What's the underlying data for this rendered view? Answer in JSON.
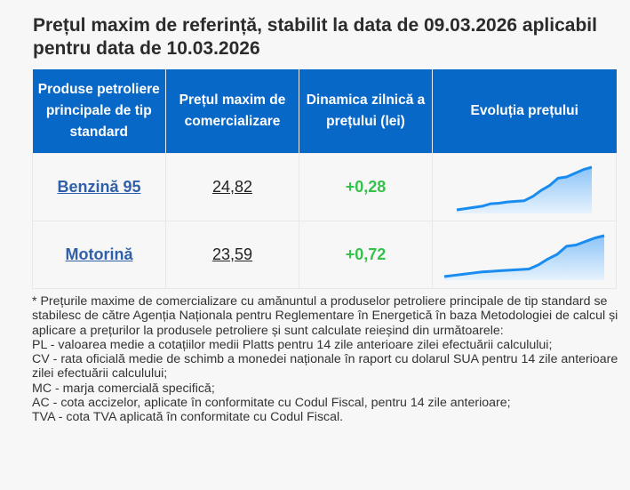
{
  "title": "Prețul maxim de referință, stabilit la data de 09.03.2026 aplicabil pentru data de 10.03.2026",
  "table": {
    "headers": [
      "Produse petroliere principale de tip standard",
      "Prețul maxim de comercializare",
      "Dinamica zilnică a prețului (lei)",
      "Evoluția prețului"
    ],
    "rows": [
      {
        "product": "Benzină 95",
        "price": "24,82",
        "delta": "+0,28",
        "trend": [
          0,
          1,
          2,
          3,
          5,
          5.5,
          6.5,
          7,
          7.5,
          11,
          16,
          20,
          26,
          27,
          30,
          33,
          35
        ]
      },
      {
        "product": "Motorină",
        "price": "23,59",
        "delta": "+0,72",
        "trend": [
          0,
          1,
          2,
          3,
          4,
          4.5,
          5,
          5.5,
          6,
          6.5,
          10,
          15,
          19,
          26,
          27,
          30,
          33,
          35
        ]
      }
    ]
  },
  "colors": {
    "header_bg": "#0868c8",
    "link": "#2f5fa8",
    "positive": "#35c24a",
    "sparkline": "#1a8cf0"
  },
  "notes": [
    "* Prețurile maxime de comercializare cu amănuntul a produselor petroliere principale de tip standard se stabilesc de către Agenția Naționala pentru Reglementare în Energetică în baza Metodologiei de calcul și aplicare a prețurilor la produsele petroliere și sunt calculate reieșind din următoarele:",
    "PL - valoarea medie a cotațiilor medii Platts pentru 14 zile anterioare zilei efectuării calculului;",
    "CV - rata oficială medie de schimb a monedei naționale în raport cu dolarul SUA pentru 14 zile anterioare zilei efectuării calculului;",
    "MC - marja comercială specifică;",
    "AC - cota accizelor, aplicate în conformitate cu Codul Fiscal, pentru 14 zile anterioare;",
    "TVA - cota TVA aplicată în conformitate cu Codul Fiscal."
  ]
}
